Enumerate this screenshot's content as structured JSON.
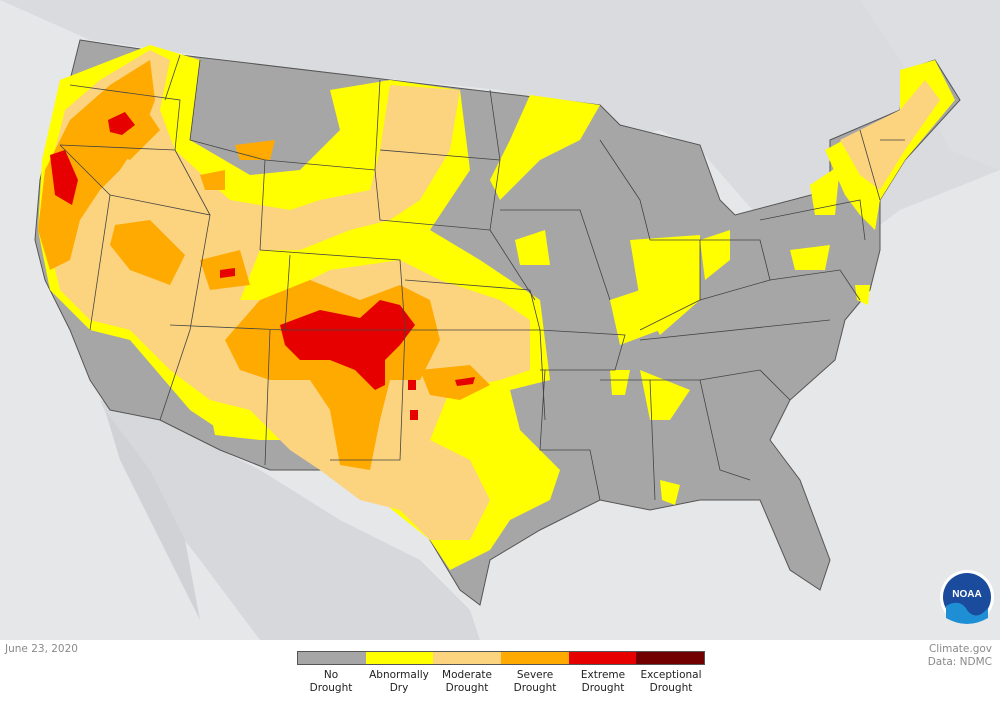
{
  "date_label": "June 23, 2020",
  "credit_line1": "Climate.gov",
  "credit_line2": "Data: NDMC",
  "logo_text": "NOAA",
  "legend": [
    {
      "line1": "No",
      "line2": "Drought",
      "color": "#a6a6a6"
    },
    {
      "line1": "Abnormally",
      "line2": "Dry",
      "color": "#ffff00"
    },
    {
      "line1": "Moderate",
      "line2": "Drought",
      "color": "#fcd37f"
    },
    {
      "line1": "Severe",
      "line2": "Drought",
      "color": "#ffaa00"
    },
    {
      "line1": "Extreme",
      "line2": "Drought",
      "color": "#e60000"
    },
    {
      "line1": "Exceptional",
      "line2": "Drought",
      "color": "#730000"
    }
  ],
  "colors": {
    "background": "#e6e7e9",
    "land_outside": "#d6d8db",
    "state_border": "#444444"
  }
}
